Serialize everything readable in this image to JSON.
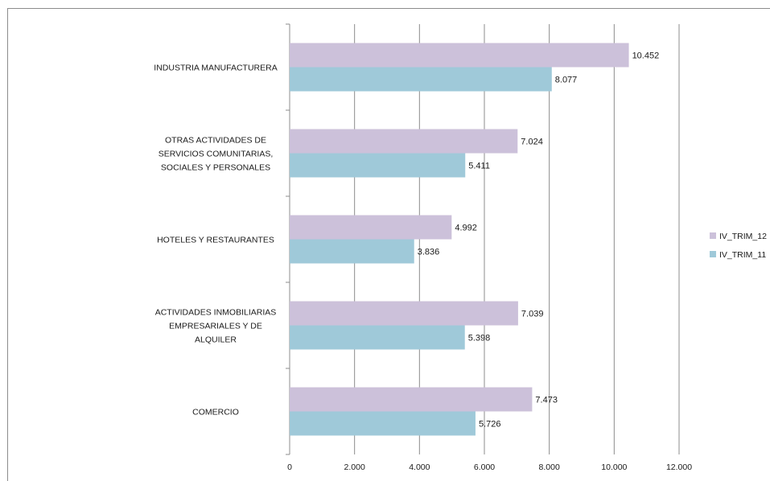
{
  "chart_data": {
    "type": "bar",
    "orientation": "horizontal",
    "categories": [
      [
        "INDUSTRIA MANUFACTURERA"
      ],
      [
        "OTRAS ACTIVIDADES DE",
        "SERVICIOS COMUNITARIAS,",
        "SOCIALES Y PERSONALES"
      ],
      [
        "HOTELES Y RESTAURANTES"
      ],
      [
        "ACTIVIDADES INMOBILIARIAS",
        "EMPRESARIALES Y DE",
        "ALQUILER"
      ],
      [
        "COMERCIO"
      ]
    ],
    "series": [
      {
        "name": "IV_TRIM_12",
        "color": "#ccc1da",
        "values": [
          10452,
          7024,
          4992,
          7039,
          7473
        ],
        "labels": [
          "10.452",
          "7.024",
          "4.992",
          "7.039",
          "7.473"
        ]
      },
      {
        "name": "IV_TRIM_11",
        "color": "#9fc9d9",
        "values": [
          8077,
          5411,
          3836,
          5398,
          5726
        ],
        "labels": [
          "8.077",
          "5.411",
          "3.836",
          "5.398",
          "5.726"
        ]
      }
    ],
    "xlim": [
      0,
      12000
    ],
    "xticks": [
      0,
      2000,
      4000,
      6000,
      8000,
      10000,
      12000
    ],
    "xtick_labels": [
      "0",
      "2.000",
      "4.000",
      "6.000",
      "8.000",
      "10.000",
      "12.000"
    ],
    "grid": "vertical",
    "legend_position": "right",
    "title": "",
    "xlabel": "",
    "ylabel": ""
  }
}
